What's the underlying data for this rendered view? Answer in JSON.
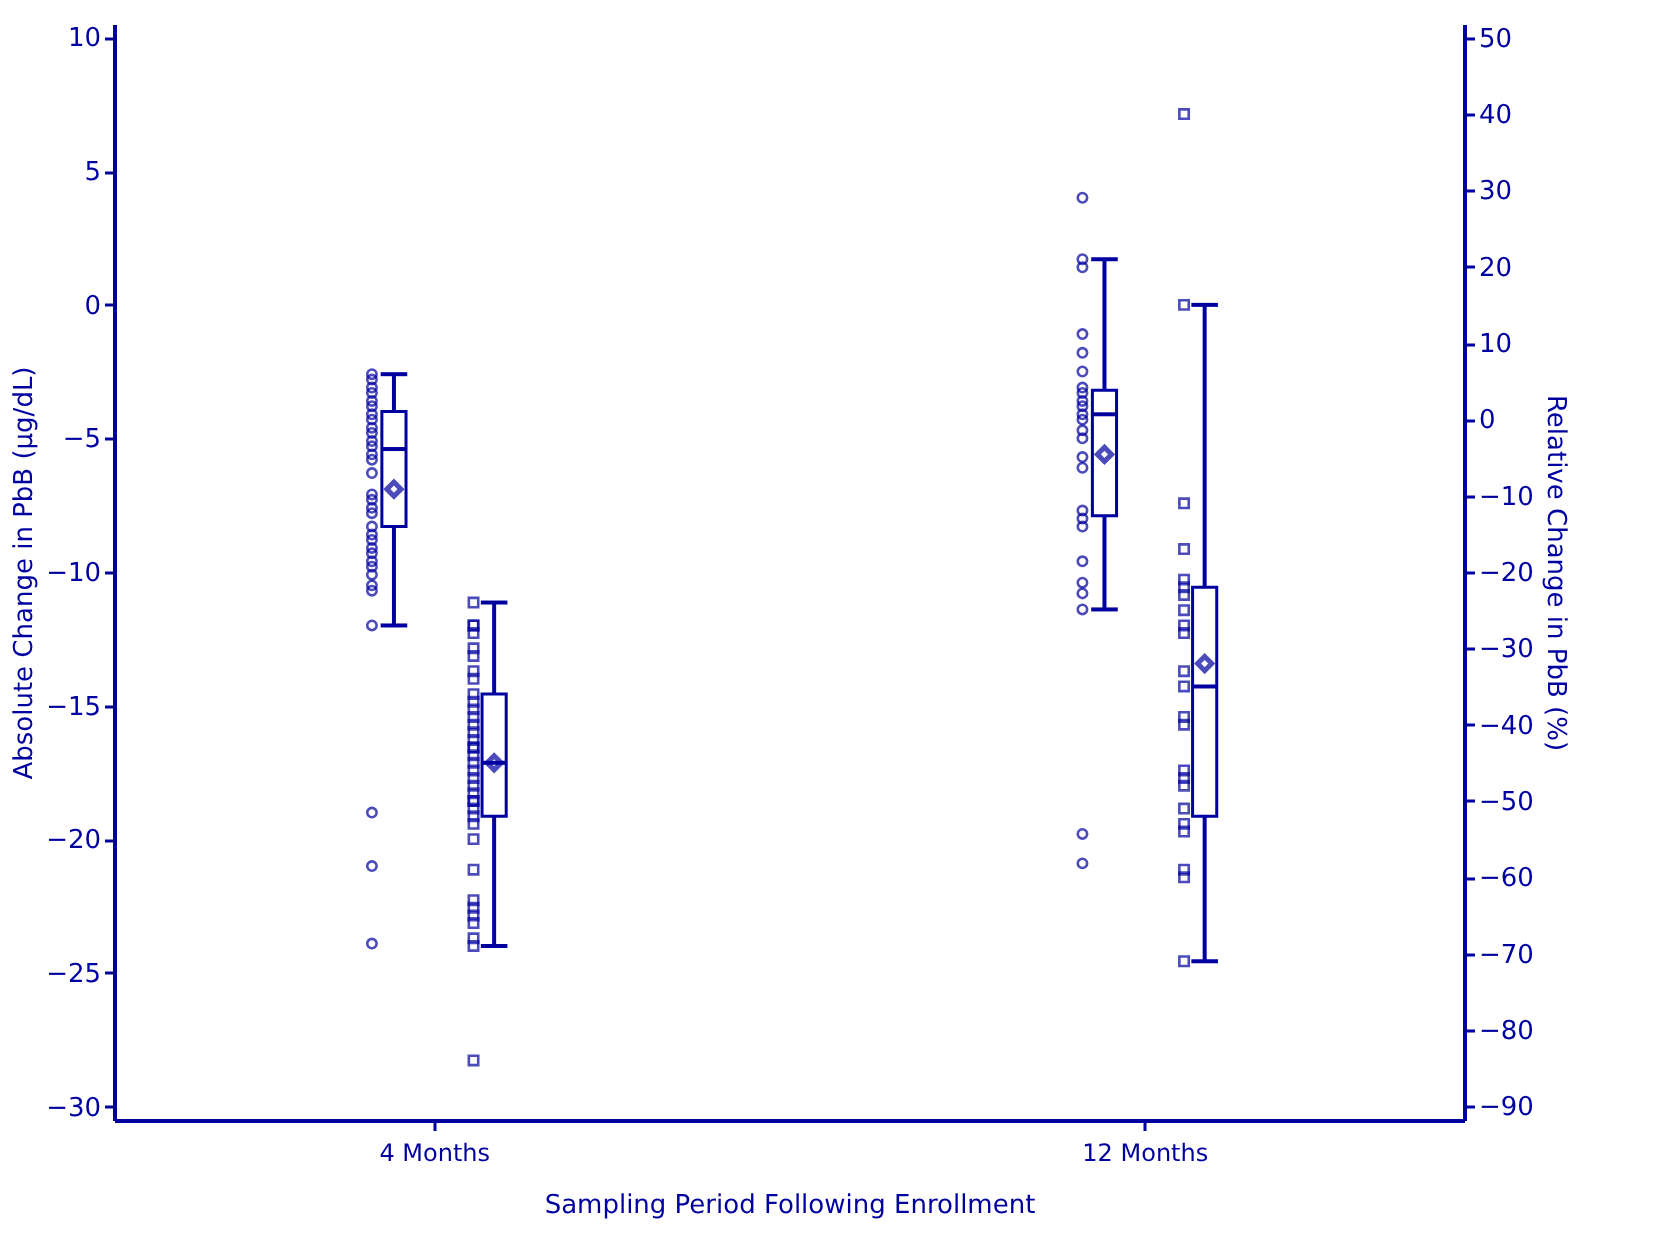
{
  "chart_data": {
    "type": "box",
    "categories": [
      "4 Months",
      "12 Months"
    ],
    "xlabel": "Sampling Period Following Enrollment",
    "ylabel": "Absolute Change in PbB (µg/dL)",
    "y2label": "Relative Change in PbB (%)",
    "ylim": [
      -30.5,
      10.5
    ],
    "yticks": [
      -30,
      -25,
      -20,
      -15,
      -10,
      -5,
      0,
      5,
      10
    ],
    "y2lim": [
      -91.8,
      51.8
    ],
    "y2ticks": [
      -90,
      -80,
      -70,
      -60,
      -50,
      -40,
      -30,
      -20,
      -10,
      0,
      10,
      20,
      30,
      40,
      50
    ],
    "grid": false,
    "series": [
      {
        "type": "box",
        "color": "#0000a0",
        "boxes": [
          {
            "low": -12.0,
            "q1": -8.3,
            "median": -5.4,
            "q3": -4.0,
            "high": -2.6,
            "mean": -6.9
          },
          {
            "low": -11.4,
            "q1": -7.9,
            "median": -4.1,
            "q3": -3.2,
            "high": 1.7,
            "mean": -5.6
          }
        ]
      },
      {
        "type": "box",
        "axis": "y2",
        "color": "#0000a0",
        "boxes": [
          {
            "low": -69,
            "q1": -52,
            "median": -45,
            "q3": -36,
            "high": -24,
            "mean": -45
          },
          {
            "low": -71,
            "q1": -52,
            "median": -35,
            "q3": -22,
            "high": 15,
            "mean": -32
          }
        ]
      },
      {
        "type": "scatter",
        "marker": "circle",
        "color": "#0000a0",
        "x": [
          "4 Months",
          "4 Months",
          "4 Months",
          "4 Months",
          "4 Months",
          "4 Months",
          "4 Months",
          "4 Months",
          "4 Months",
          "4 Months",
          "4 Months",
          "4 Months",
          "4 Months",
          "4 Months",
          "4 Months",
          "4 Months",
          "4 Months",
          "4 Months",
          "4 Months",
          "4 Months",
          "4 Months",
          "4 Months",
          "4 Months",
          "4 Months",
          "4 Months",
          "4 Months",
          "4 Months",
          "4 Months",
          "4 Months",
          "4 Months",
          "4 Months",
          "4 Months",
          "4 Months",
          "12 Months",
          "12 Months",
          "12 Months",
          "12 Months",
          "12 Months",
          "12 Months",
          "12 Months",
          "12 Months",
          "12 Months",
          "12 Months",
          "12 Months",
          "12 Months",
          "12 Months",
          "12 Months",
          "12 Months",
          "12 Months",
          "12 Months",
          "12 Months",
          "12 Months",
          "12 Months",
          "12 Months",
          "12 Months",
          "12 Months",
          "12 Months",
          "12 Months"
        ],
        "values": [
          -2.6,
          -2.8,
          -3.1,
          -3.3,
          -3.6,
          -3.8,
          -4.1,
          -4.3,
          -4.6,
          -4.8,
          -5.1,
          -5.3,
          -5.6,
          -5.8,
          -6.3,
          -7.1,
          -7.3,
          -7.6,
          -7.8,
          -8.3,
          -8.6,
          -8.8,
          -9.1,
          -9.3,
          -9.6,
          -9.8,
          -10.1,
          -10.5,
          -10.7,
          -12.0,
          -19.0,
          -21.0,
          -23.9,
          4.0,
          1.7,
          1.4,
          -1.1,
          -1.8,
          -2.5,
          -3.1,
          -3.3,
          -3.6,
          -3.8,
          -4.1,
          -4.3,
          -4.7,
          -5.0,
          -5.7,
          -6.1,
          -7.7,
          -8.0,
          -8.3,
          -9.6,
          -10.4,
          -10.8,
          -11.4,
          -19.8,
          -20.9
        ]
      },
      {
        "type": "scatter",
        "axis": "y2",
        "marker": "square",
        "color": "#0000a0",
        "x": [
          "4 Months",
          "4 Months",
          "4 Months",
          "4 Months",
          "4 Months",
          "4 Months",
          "4 Months",
          "4 Months",
          "4 Months",
          "4 Months",
          "4 Months",
          "4 Months",
          "4 Months",
          "4 Months",
          "4 Months",
          "4 Months",
          "4 Months",
          "4 Months",
          "4 Months",
          "4 Months",
          "4 Months",
          "4 Months",
          "4 Months",
          "4 Months",
          "4 Months",
          "4 Months",
          "4 Months",
          "4 Months",
          "4 Months",
          "4 Months",
          "4 Months",
          "4 Months",
          "4 Months",
          "4 Months",
          "4 Months",
          "4 Months",
          "4 Months",
          "12 Months",
          "12 Months",
          "12 Months",
          "12 Months",
          "12 Months",
          "12 Months",
          "12 Months",
          "12 Months",
          "12 Months",
          "12 Months",
          "12 Months",
          "12 Months",
          "12 Months",
          "12 Months",
          "12 Months",
          "12 Months",
          "12 Months",
          "12 Months",
          "12 Months",
          "12 Months",
          "12 Months",
          "12 Months",
          "12 Months"
        ],
        "values": [
          -24,
          -27,
          -27,
          -28,
          -30,
          -31,
          -33,
          -34,
          -36,
          -37,
          -38,
          -39,
          -40,
          -41,
          -42,
          -43,
          -43,
          -44,
          -45,
          -46,
          -47,
          -48,
          -49,
          -50,
          -50,
          -51,
          -52,
          -53,
          -55,
          -59,
          -63,
          -64,
          -65,
          -66,
          -68,
          -69,
          -84,
          40,
          15,
          -11,
          -17,
          -21,
          -22,
          -23,
          -25,
          -27,
          -28,
          -33,
          -35,
          -39,
          -40,
          -46,
          -47,
          -48,
          -51,
          -53,
          -54,
          -59,
          -60,
          -71
        ]
      }
    ]
  }
}
